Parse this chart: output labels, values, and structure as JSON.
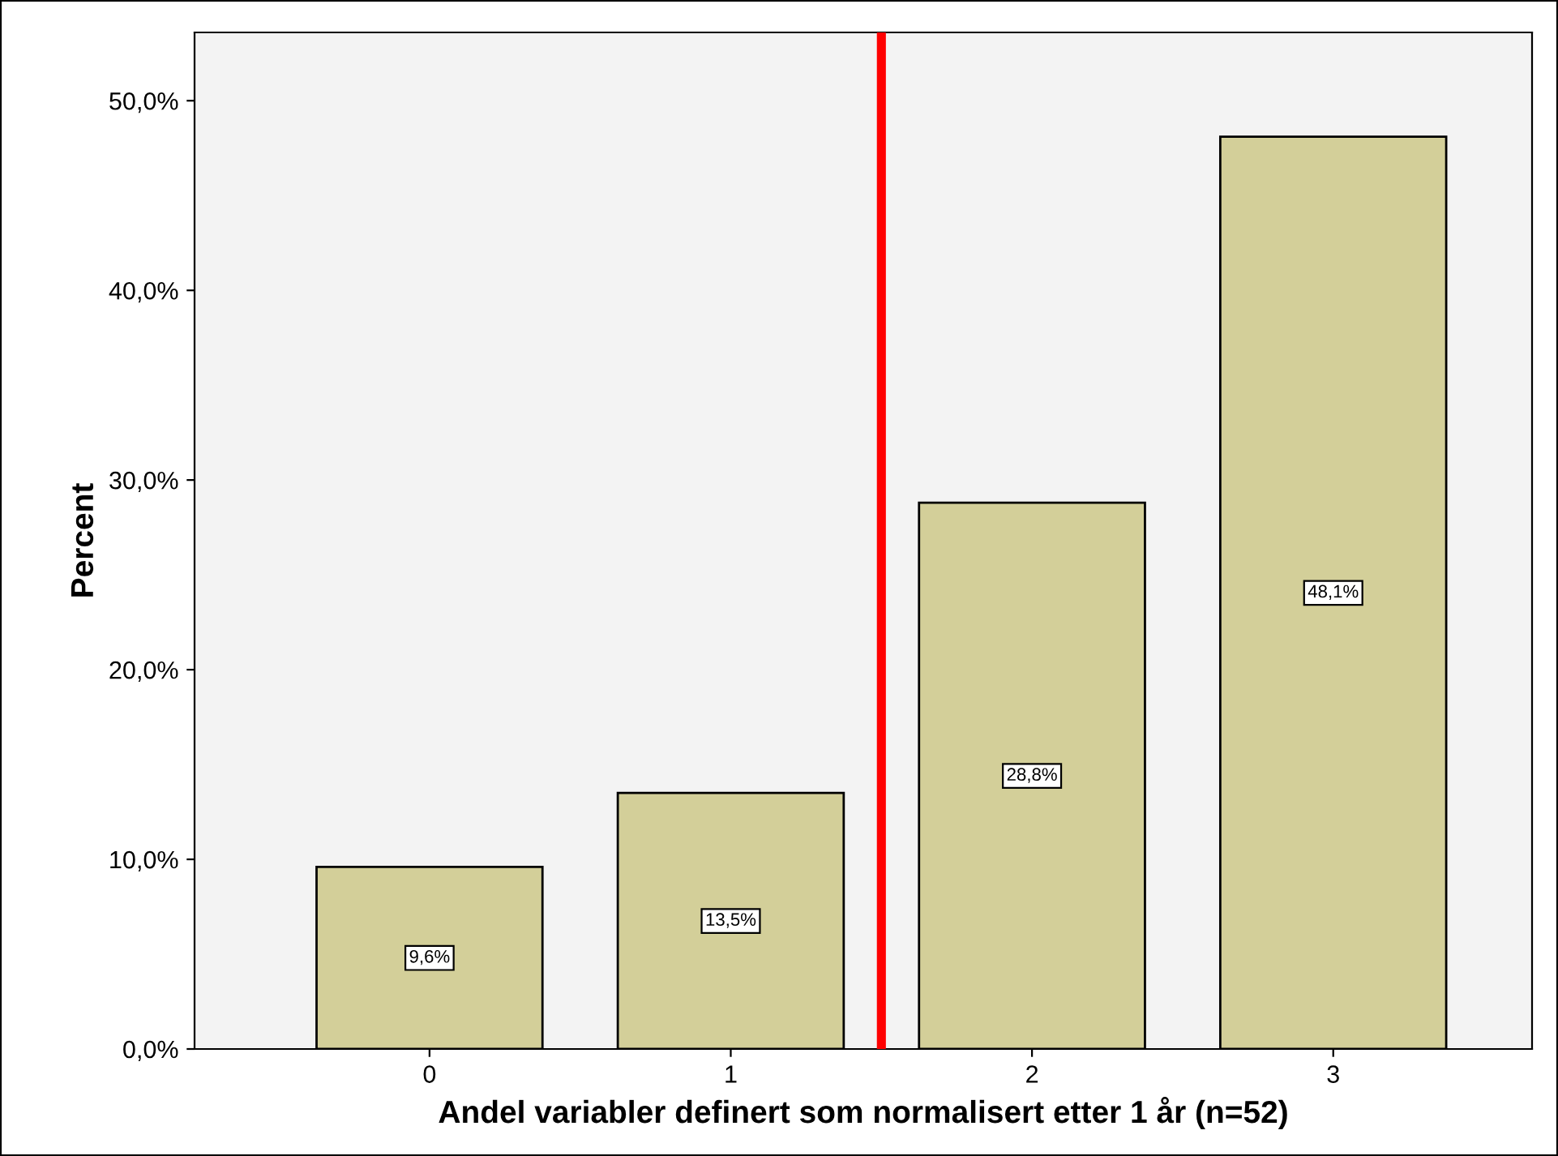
{
  "chart_data": {
    "type": "bar",
    "xlabel": "Andel variabler definert som normalisert etter 1 år (n=52)",
    "ylabel": "Percent",
    "x": [
      0,
      1,
      2,
      3
    ],
    "xlim": [
      -0.78,
      3.66
    ],
    "xticks": [
      0,
      1,
      2,
      3
    ],
    "values": [
      9.6,
      13.5,
      28.8,
      48.1
    ],
    "value_labels": [
      "9,6%",
      "13,5%",
      "28,8%",
      "48,1%"
    ],
    "color": "#d3cf99",
    "ylim": [
      0,
      53.6
    ],
    "yticks": [
      {
        "value": 0,
        "label": "0,0%"
      },
      {
        "value": 10,
        "label": "10,0%"
      },
      {
        "value": 20,
        "label": "20,0%"
      },
      {
        "value": 30,
        "label": "30,0%"
      },
      {
        "value": 40,
        "label": "40,0%"
      },
      {
        "value": 50,
        "label": "50,0%"
      }
    ],
    "ref_lines": [
      {
        "axis": "x",
        "value": 1.5,
        "color": "#ff0000"
      }
    ],
    "grid": false,
    "legend": false
  }
}
